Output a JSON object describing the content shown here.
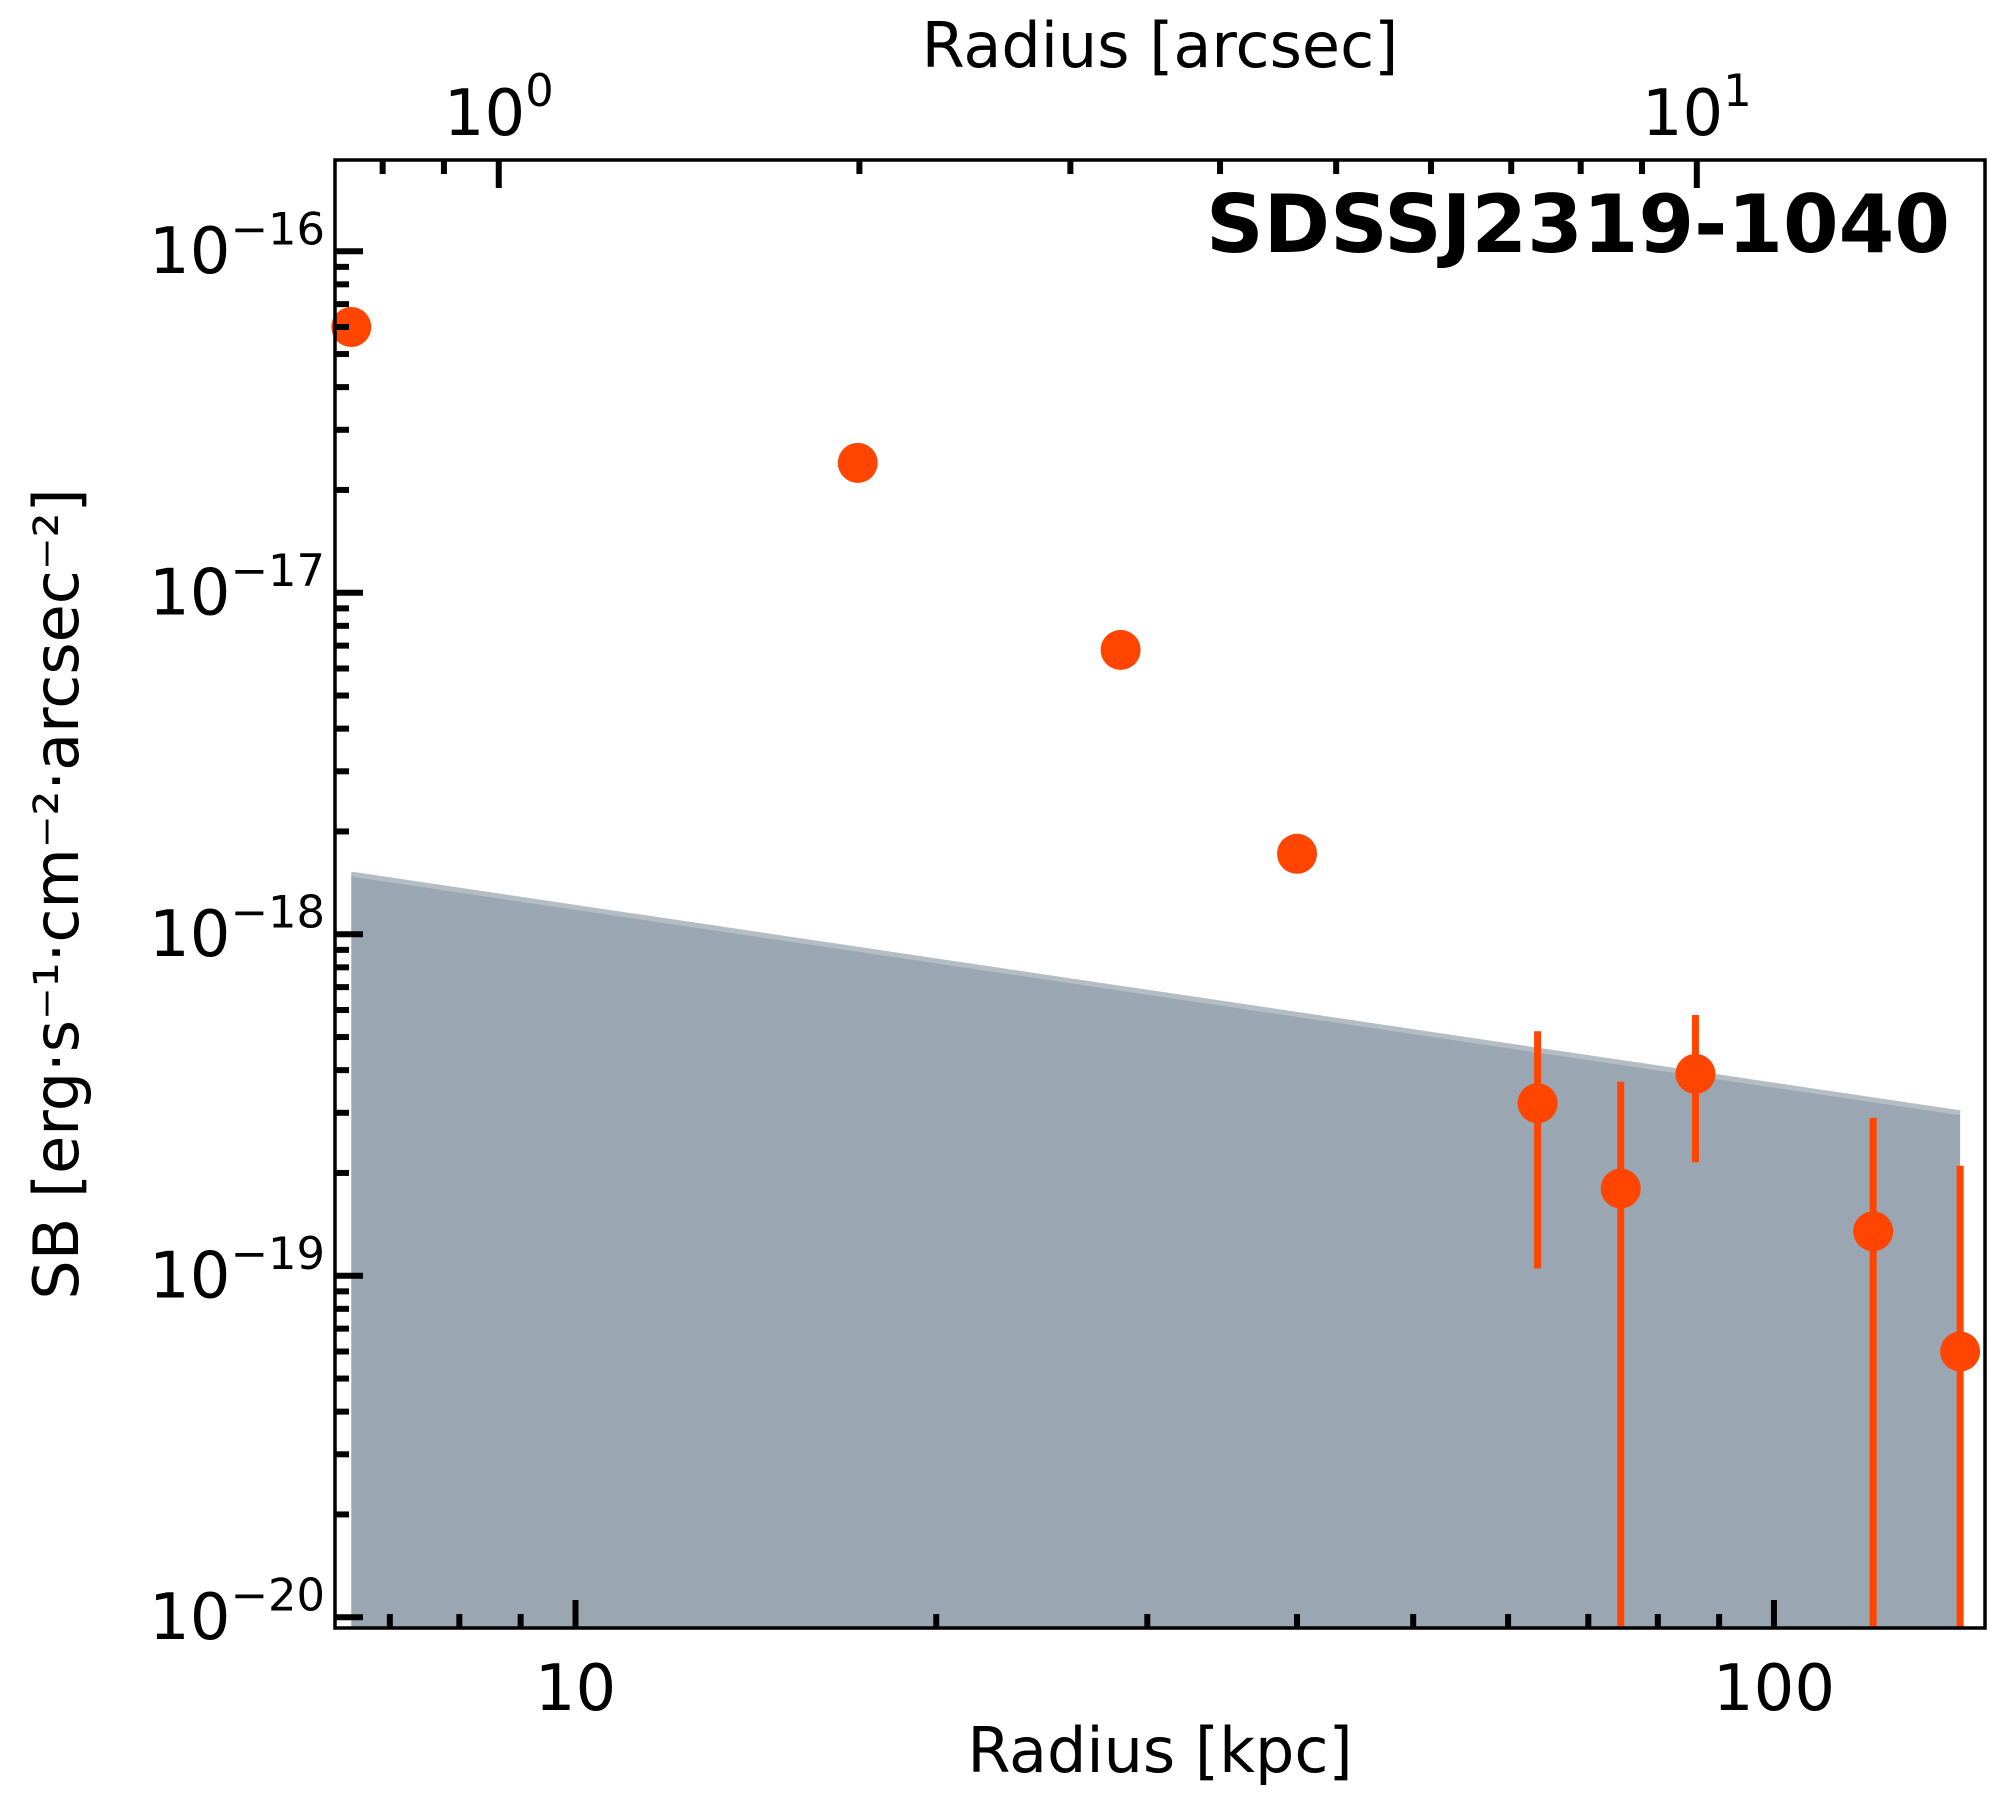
{
  "chart_data": {
    "type": "scatter",
    "title": "SDSSJ2319-1040",
    "xlabel": "Radius [kpc]",
    "x2label": "Radius [arcsec]",
    "ylabel": "SB [erg·s⁻¹·cm⁻²·arcsec⁻²]",
    "xscale": "log",
    "yscale": "log",
    "xlim": [
      6.3,
      150
    ],
    "ylim": [
      9.3e-21,
      1.85e-16
    ],
    "x2lim": [
      0.73,
      17.4
    ],
    "xticks": [
      {
        "value": 10,
        "label": "10"
      },
      {
        "value": 100,
        "label": "100"
      }
    ],
    "x2ticks": [
      {
        "value": 1,
        "base": "10",
        "exp": "0"
      },
      {
        "value": 10,
        "base": "10",
        "exp": "1"
      }
    ],
    "yticks": [
      {
        "value": 1e-16,
        "base": "10",
        "exp": "−16"
      },
      {
        "value": 1e-17,
        "base": "10",
        "exp": "−17"
      },
      {
        "value": 1e-18,
        "base": "10",
        "exp": "−18"
      },
      {
        "value": 1e-19,
        "base": "10",
        "exp": "−19"
      },
      {
        "value": 1e-20,
        "base": "10",
        "exp": "−20"
      }
    ],
    "series": [
      {
        "color": "#ff4500",
        "points": [
          {
            "x": 6.5,
            "y": 6e-17,
            "ylo": 6e-17,
            "yhi": 6e-17
          },
          {
            "x": 17.2,
            "y": 2.4e-17,
            "ylo": 2.4e-17,
            "yhi": 2.4e-17
          },
          {
            "x": 28.5,
            "y": 6.8e-18,
            "ylo": 6.8e-18,
            "yhi": 6.8e-18
          },
          {
            "x": 40.0,
            "y": 1.72e-18,
            "ylo": 1.52e-18,
            "yhi": 1.95e-18
          },
          {
            "x": 63.5,
            "y": 3.2e-19,
            "ylo": 1.05e-19,
            "yhi": 5.2e-19
          },
          {
            "x": 74.5,
            "y": 1.8e-19,
            "ylo": 9.3e-21,
            "yhi": 3.7e-19
          },
          {
            "x": 86.0,
            "y": 3.9e-19,
            "ylo": 2.15e-19,
            "yhi": 5.8e-19
          },
          {
            "x": 121.0,
            "y": 1.35e-19,
            "ylo": 9.3e-21,
            "yhi": 2.9e-19
          },
          {
            "x": 143.0,
            "y": 6e-20,
            "ylo": 9.3e-21,
            "yhi": 2.1e-19
          }
        ]
      }
    ],
    "limit_region": {
      "fill": "#9aa6b1",
      "edge": "#b4bcc4",
      "x": [
        6.5,
        143.0
      ],
      "y": [
        1.5e-18,
        3e-19
      ]
    },
    "grid": false,
    "legend": "none"
  }
}
